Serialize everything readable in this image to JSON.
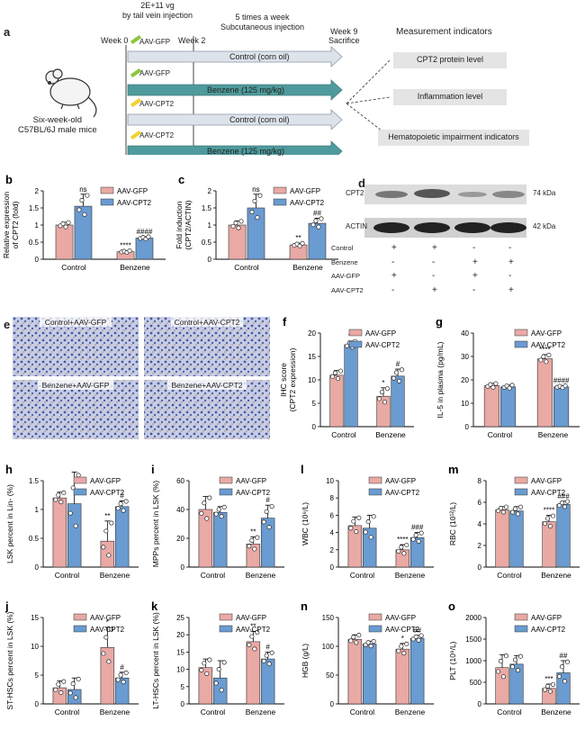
{
  "panel_a": {
    "letter": "a",
    "dose_note": "2E+11 vg\nby tail vein injection",
    "schedule_note": "5 times a week\nSubcutaneous injection",
    "week0": "Week 0",
    "week2": "Week 2",
    "week9": "Week 9\nSacrifice",
    "mouse_label": "Six-week-old\nC57BL/6J male mice",
    "rows": [
      {
        "virus": "AAV-GFP",
        "treatment": "Control (corn oil)"
      },
      {
        "virus": "AAV-GFP",
        "treatment": "Benzene (125 mg/kg)"
      },
      {
        "virus": "AAV-CPT2",
        "treatment": "Control (corn oil)"
      },
      {
        "virus": "AAV-CPT2",
        "treatment": "Benzene (125 mg/kg)"
      }
    ],
    "indicators_title": "Measurement indicators",
    "indicators": [
      "CPT2 protein level",
      "Inflammation level",
      "Hematopoietic impairment indicators"
    ]
  },
  "colors": {
    "gfp": "#e9a9a4",
    "cpt2": "#6a9bd1",
    "arrow_gray": "#9aa9bb",
    "arrow_teal": "#4f9a9c"
  },
  "legend": {
    "gfp": "AAV-GFP",
    "cpt2": "AAV-CPT2"
  },
  "panel_d": {
    "letter": "d",
    "bands": [
      "CPT2",
      "ACTIN"
    ],
    "sizes": [
      "74 kDa",
      "42 kDa"
    ],
    "row_labels": [
      "Control",
      "Benzene",
      "AAV-GFP",
      "AAV-CPT2"
    ],
    "matrix": [
      [
        "+",
        "+",
        "-",
        "-"
      ],
      [
        "-",
        "-",
        "+",
        "+"
      ],
      [
        "+",
        "-",
        "+",
        "-"
      ],
      [
        "-",
        "+",
        "-",
        "+"
      ]
    ]
  },
  "panel_e": {
    "letter": "e",
    "images": [
      "Control+AAV-GFP",
      "Control+AAV-CPT2",
      "Benzene+AAV-GFP",
      "Benzene+AAV-CPT2"
    ]
  },
  "chart_data": [
    {
      "id": "b",
      "type": "bar",
      "categories": [
        "Control",
        "Benzene"
      ],
      "ylabel": "Relative expression\nof CPT2 (fold)",
      "ylim": [
        0,
        2
      ],
      "yticks": [
        0,
        0.5,
        1,
        1.5,
        2
      ],
      "series": [
        {
          "name": "AAV-GFP",
          "values": [
            1.0,
            0.22
          ],
          "err": [
            0.08,
            0.03
          ]
        },
        {
          "name": "AAV-CPT2",
          "values": [
            1.55,
            0.62
          ],
          "err": [
            0.35,
            0.04
          ]
        }
      ],
      "annotations": [
        {
          "cat": 0,
          "series": 1,
          "text": "ns"
        },
        {
          "cat": 1,
          "series": 0,
          "text": "****"
        },
        {
          "cat": 1,
          "series": 1,
          "text": "####"
        }
      ]
    },
    {
      "id": "c",
      "type": "bar",
      "categories": [
        "Control",
        "Benzene"
      ],
      "ylabel": "Fold induction\n(CPT2/ACTIN)",
      "ylim": [
        0,
        2
      ],
      "yticks": [
        0,
        0.5,
        1,
        1.5,
        2
      ],
      "series": [
        {
          "name": "AAV-GFP",
          "values": [
            1.0,
            0.42
          ],
          "err": [
            0.12,
            0.05
          ]
        },
        {
          "name": "AAV-CPT2",
          "values": [
            1.5,
            1.05
          ],
          "err": [
            0.4,
            0.15
          ]
        }
      ],
      "annotations": [
        {
          "cat": 0,
          "series": 1,
          "text": "ns"
        },
        {
          "cat": 1,
          "series": 0,
          "text": "**"
        },
        {
          "cat": 1,
          "series": 1,
          "text": "##"
        }
      ]
    },
    {
      "id": "f",
      "type": "bar",
      "categories": [
        "Control",
        "Benzene"
      ],
      "ylabel": "IHC score\n(CPT2 expression)",
      "ylim": [
        0,
        20
      ],
      "yticks": [
        0,
        5,
        10,
        15,
        20
      ],
      "series": [
        {
          "name": "AAV-GFP",
          "values": [
            11,
            6.5
          ],
          "err": [
            1,
            1.8
          ]
        },
        {
          "name": "AAV-CPT2",
          "values": [
            17.5,
            10.8
          ],
          "err": [
            0.8,
            1.5
          ]
        }
      ],
      "annotations": [
        {
          "cat": 0,
          "series": 1,
          "text": "**"
        },
        {
          "cat": 1,
          "series": 0,
          "text": "*"
        },
        {
          "cat": 1,
          "series": 1,
          "text": "#"
        }
      ]
    },
    {
      "id": "g",
      "type": "bar",
      "categories": [
        "Control",
        "Benzene"
      ],
      "ylabel": "IL-5 in plasma (pg/mL)",
      "ylim": [
        0,
        40
      ],
      "yticks": [
        0,
        10,
        20,
        30,
        40
      ],
      "series": [
        {
          "name": "AAV-GFP",
          "values": [
            17.5,
            29
          ],
          "err": [
            1,
            1.8
          ]
        },
        {
          "name": "AAV-CPT2",
          "values": [
            17,
            17
          ],
          "err": [
            0.8,
            0.5
          ]
        }
      ],
      "annotations": [
        {
          "cat": 1,
          "series": 0,
          "text": "****"
        },
        {
          "cat": 1,
          "series": 1,
          "text": "####"
        }
      ]
    },
    {
      "id": "h",
      "type": "bar",
      "categories": [
        "Control",
        "Benzene"
      ],
      "ylabel": "LSK percent in Lin- (%)",
      "ylim": [
        0,
        1.5
      ],
      "yticks": [
        0,
        0.5,
        1,
        1.5
      ],
      "series": [
        {
          "name": "AAV-GFP",
          "values": [
            1.2,
            0.45
          ],
          "err": [
            0.1,
            0.35
          ]
        },
        {
          "name": "AAV-CPT2",
          "values": [
            1.1,
            1.05
          ],
          "err": [
            0.55,
            0.1
          ]
        }
      ],
      "annotations": [
        {
          "cat": 1,
          "series": 0,
          "text": "**"
        },
        {
          "cat": 1,
          "series": 1,
          "text": "#"
        }
      ]
    },
    {
      "id": "i",
      "type": "bar",
      "categories": [
        "Control",
        "Benzene"
      ],
      "ylabel": "MPPs percent in LSK (%)",
      "ylim": [
        0,
        60
      ],
      "yticks": [
        0,
        20,
        40,
        60
      ],
      "series": [
        {
          "name": "AAV-GFP",
          "values": [
            40,
            16
          ],
          "err": [
            9,
            5
          ]
        },
        {
          "name": "AAV-CPT2",
          "values": [
            38,
            34
          ],
          "err": [
            4,
            9
          ]
        }
      ],
      "annotations": [
        {
          "cat": 1,
          "series": 0,
          "text": "**"
        },
        {
          "cat": 1,
          "series": 1,
          "text": "#"
        }
      ]
    },
    {
      "id": "l",
      "type": "bar",
      "categories": [
        "Control",
        "Benzene"
      ],
      "ylabel": "WBC (10⁹/L)",
      "ylim": [
        0,
        10
      ],
      "yticks": [
        0,
        2,
        4,
        6,
        8,
        10
      ],
      "series": [
        {
          "name": "AAV-GFP",
          "values": [
            4.8,
            2.0
          ],
          "err": [
            1,
            0.6
          ]
        },
        {
          "name": "AAV-CPT2",
          "values": [
            4.5,
            3.4
          ],
          "err": [
            1.5,
            0.6
          ]
        }
      ],
      "annotations": [
        {
          "cat": 1,
          "series": 0,
          "text": "****"
        },
        {
          "cat": 1,
          "series": 1,
          "text": "###"
        }
      ]
    },
    {
      "id": "m",
      "type": "bar",
      "categories": [
        "Control",
        "Benzene"
      ],
      "ylabel": "RBC (10¹²/L)",
      "ylim": [
        0,
        8
      ],
      "yticks": [
        0,
        2,
        4,
        6,
        8
      ],
      "series": [
        {
          "name": "AAV-GFP",
          "values": [
            5.3,
            4.2
          ],
          "err": [
            0.3,
            0.6
          ]
        },
        {
          "name": "AAV-CPT2",
          "values": [
            5.2,
            5.8
          ],
          "err": [
            0.4,
            0.3
          ]
        }
      ],
      "annotations": [
        {
          "cat": 1,
          "series": 0,
          "text": "****"
        },
        {
          "cat": 1,
          "series": 1,
          "text": "###"
        }
      ]
    },
    {
      "id": "j",
      "type": "bar",
      "categories": [
        "Control",
        "Benzene"
      ],
      "ylabel": "ST-HSCs percent in LSK (%)",
      "ylim": [
        0,
        15
      ],
      "yticks": [
        0,
        5,
        10,
        15
      ],
      "series": [
        {
          "name": "AAV-GFP",
          "values": [
            2.8,
            9.8
          ],
          "err": [
            1.2,
            3.5
          ]
        },
        {
          "name": "AAV-CPT2",
          "values": [
            2.5,
            4.5
          ],
          "err": [
            2,
            1
          ]
        }
      ],
      "annotations": [
        {
          "cat": 1,
          "series": 0,
          "text": "*"
        },
        {
          "cat": 1,
          "series": 1,
          "text": "#"
        }
      ]
    },
    {
      "id": "k",
      "type": "bar",
      "categories": [
        "Control",
        "Benzene"
      ],
      "ylabel": "LT-HSCs percent in LSK (%)",
      "ylim": [
        0,
        25
      ],
      "yticks": [
        0,
        5,
        10,
        15,
        20,
        25
      ],
      "series": [
        {
          "name": "AAV-GFP",
          "values": [
            10.5,
            18
          ],
          "err": [
            2.5,
            3
          ]
        },
        {
          "name": "AAV-CPT2",
          "values": [
            7.5,
            13
          ],
          "err": [
            5,
            2
          ]
        }
      ],
      "annotations": [
        {
          "cat": 1,
          "series": 0,
          "text": "**"
        },
        {
          "cat": 1,
          "series": 1,
          "text": "#"
        }
      ]
    },
    {
      "id": "n",
      "type": "bar",
      "categories": [
        "Control",
        "Benzene"
      ],
      "ylabel": "HGB (g/L)",
      "ylim": [
        0,
        150
      ],
      "yticks": [
        0,
        50,
        100,
        150
      ],
      "series": [
        {
          "name": "AAV-GFP",
          "values": [
            112,
            95
          ],
          "err": [
            8,
            10
          ]
        },
        {
          "name": "AAV-CPT2",
          "values": [
            104,
            114
          ],
          "err": [
            5,
            5
          ]
        }
      ],
      "annotations": [
        {
          "cat": 1,
          "series": 0,
          "text": "*"
        },
        {
          "cat": 1,
          "series": 1,
          "text": "##"
        }
      ]
    },
    {
      "id": "o",
      "type": "bar",
      "categories": [
        "Control",
        "Benzene"
      ],
      "ylabel": "PLT (10⁹/L)",
      "ylim": [
        0,
        2000
      ],
      "yticks": [
        0,
        500,
        1000,
        1500,
        2000
      ],
      "series": [
        {
          "name": "AAV-GFP",
          "values": [
            840,
            360
          ],
          "err": [
            300,
            100
          ]
        },
        {
          "name": "AAV-CPT2",
          "values": [
            920,
            720
          ],
          "err": [
            200,
            280
          ]
        }
      ],
      "annotations": [
        {
          "cat": 1,
          "series": 0,
          "text": "***"
        },
        {
          "cat": 1,
          "series": 1,
          "text": "##"
        }
      ]
    }
  ]
}
